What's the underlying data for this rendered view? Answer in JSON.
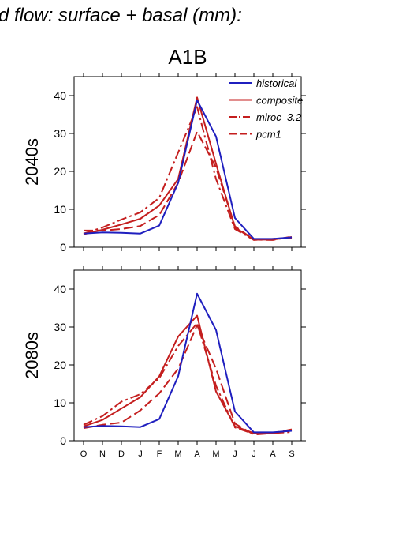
{
  "header": {
    "title": "d flow: surface + basal (mm):",
    "scenario": "A1B"
  },
  "colors": {
    "historical": "#1f1fbf",
    "projection": "#c41e1e",
    "axis": "#000000"
  },
  "chart_data": [
    {
      "type": "line",
      "panel_label": "2040s",
      "categories": [
        "O",
        "N",
        "D",
        "J",
        "F",
        "M",
        "A",
        "M",
        "J",
        "J",
        "A",
        "S"
      ],
      "ylim": [
        0,
        45
      ],
      "yticks": [
        0,
        10,
        20,
        30,
        40
      ],
      "legend_position": "top-right",
      "series": [
        {
          "name": "historical",
          "style": "solid",
          "color": "#1f1fbf",
          "values": [
            3.6,
            3.9,
            3.8,
            3.6,
            5.7,
            17.0,
            38.8,
            29.2,
            7.7,
            2.2,
            2.2,
            2.6
          ]
        },
        {
          "name": "composite",
          "style": "solid",
          "color": "#c41e1e",
          "values": [
            3.4,
            4.6,
            6.0,
            7.5,
            11.0,
            18.0,
            39.5,
            22.0,
            5.2,
            2.0,
            2.0,
            2.7
          ]
        },
        {
          "name": "miroc_3.2",
          "style": "dashdot",
          "color": "#c41e1e",
          "values": [
            3.6,
            5.2,
            7.3,
            9.2,
            13.0,
            25.0,
            37.0,
            18.0,
            4.8,
            1.9,
            2.2,
            2.5
          ]
        },
        {
          "name": "pcm1",
          "style": "dashed",
          "color": "#c41e1e",
          "values": [
            4.4,
            4.4,
            4.8,
            5.6,
            8.5,
            17.0,
            30.5,
            21.0,
            5.5,
            2.0,
            1.9,
            2.8
          ]
        }
      ]
    },
    {
      "type": "line",
      "panel_label": "2080s",
      "categories": [
        "O",
        "N",
        "D",
        "J",
        "F",
        "M",
        "A",
        "M",
        "J",
        "J",
        "A",
        "S"
      ],
      "ylim": [
        0,
        45
      ],
      "yticks": [
        0,
        10,
        20,
        30,
        40
      ],
      "series": [
        {
          "name": "historical",
          "style": "solid",
          "color": "#1f1fbf",
          "values": [
            3.6,
            3.9,
            3.8,
            3.6,
            5.7,
            17.0,
            38.8,
            29.2,
            7.7,
            2.2,
            2.2,
            2.6
          ]
        },
        {
          "name": "composite",
          "style": "solid",
          "color": "#c41e1e",
          "values": [
            3.8,
            5.5,
            8.5,
            11.5,
            17.0,
            27.5,
            33.0,
            13.0,
            3.8,
            2.0,
            2.0,
            2.8
          ]
        },
        {
          "name": "miroc_3.2",
          "style": "dashdot",
          "color": "#c41e1e",
          "values": [
            4.2,
            6.5,
            10.3,
            12.3,
            16.5,
            25.0,
            31.0,
            14.5,
            3.5,
            1.8,
            2.0,
            2.3
          ]
        },
        {
          "name": "pcm1",
          "style": "dashed",
          "color": "#c41e1e",
          "values": [
            3.3,
            4.2,
            4.8,
            8.0,
            12.5,
            19.0,
            30.5,
            19.0,
            4.5,
            1.6,
            2.0,
            3.0
          ]
        }
      ]
    }
  ]
}
